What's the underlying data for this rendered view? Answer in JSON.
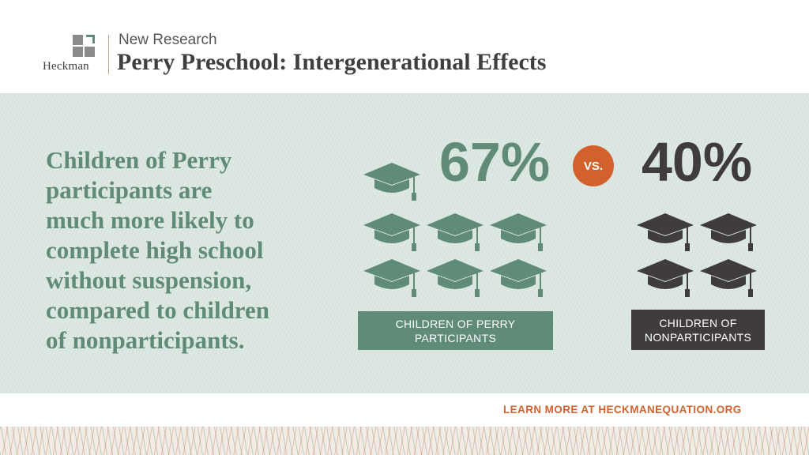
{
  "header": {
    "logo_text": "Heckman",
    "kicker": "New Research",
    "title": "Perry Preschool: Intergenerational Effects"
  },
  "main": {
    "statement_lines": [
      "Children of Perry",
      "participants are",
      "much more likely to",
      "complete high school",
      "without suspension,",
      "compared to children",
      "of nonparticipants."
    ],
    "perry": {
      "percent": "67%",
      "value": 67,
      "cap_count": 7,
      "label": "CHILDREN OF PERRY PARTICIPANTS"
    },
    "vs_label": "VS.",
    "nonparticipants": {
      "percent": "40%",
      "value": 40,
      "cap_count": 4,
      "label_lines": [
        "CHILDREN OF",
        "NONPARTICIPANTS"
      ]
    }
  },
  "footer": {
    "cta": "LEARN MORE AT HECKMANEQUATION.ORG"
  },
  "colors": {
    "green": "#5f8b78",
    "dark": "#3f3c3b",
    "orange": "#d3612e",
    "panel_bg": "#d8e4de"
  },
  "icons": {
    "cap": "graduation-cap-icon"
  }
}
